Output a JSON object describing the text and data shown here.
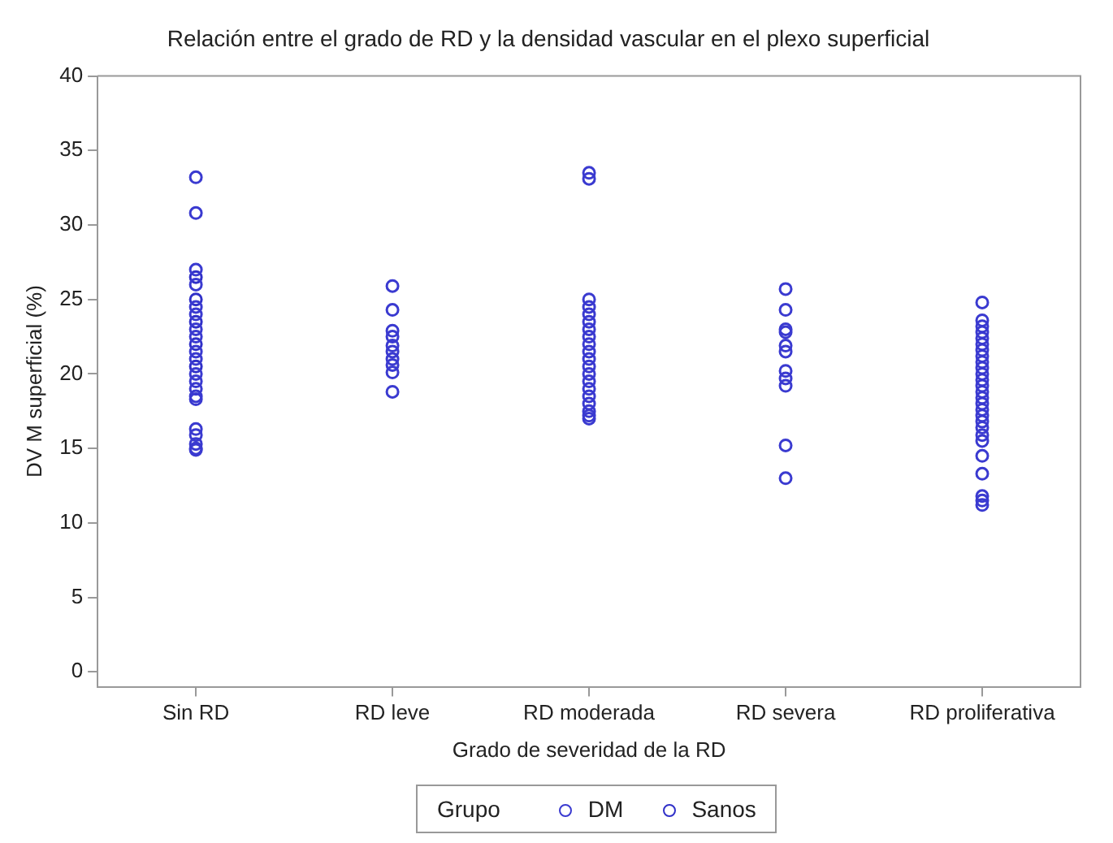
{
  "chart_data": {
    "type": "scatter",
    "title": "Relación entre el grado de RD y la densidad vascular en el plexo superficial",
    "xlabel": "Grado de severidad de la RD",
    "ylabel": "DV M superficial (%)",
    "legend_title": "Grupo",
    "legend": "bottom",
    "marker": "circle",
    "grid": false,
    "categories": [
      "Sin RD",
      "RD leve",
      "RD moderada",
      "RD severa",
      "RD proliferativa"
    ],
    "ylim": [
      -1,
      40
    ],
    "yticks": [
      0,
      5,
      10,
      15,
      20,
      25,
      30,
      35,
      40
    ],
    "series": [
      {
        "name": "DM",
        "color": "#3a3ad0",
        "x": [
          "Sin RD",
          "Sin RD",
          "Sin RD",
          "Sin RD",
          "Sin RD",
          "Sin RD",
          "Sin RD",
          "Sin RD",
          "Sin RD",
          "Sin RD",
          "Sin RD",
          "Sin RD",
          "Sin RD",
          "Sin RD",
          "Sin RD",
          "Sin RD",
          "Sin RD",
          "Sin RD",
          "Sin RD",
          "Sin RD",
          "RD leve",
          "RD leve",
          "RD leve",
          "RD leve",
          "RD leve",
          "RD leve",
          "RD leve",
          "RD leve",
          "RD leve",
          "RD leve",
          "RD moderada",
          "RD moderada",
          "RD moderada",
          "RD moderada",
          "RD moderada",
          "RD moderada",
          "RD moderada",
          "RD moderada",
          "RD moderada",
          "RD moderada",
          "RD moderada",
          "RD moderada",
          "RD moderada",
          "RD moderada",
          "RD moderada",
          "RD moderada",
          "RD moderada",
          "RD moderada",
          "RD moderada",
          "RD moderada",
          "RD severa",
          "RD severa",
          "RD severa",
          "RD severa",
          "RD severa",
          "RD severa",
          "RD severa",
          "RD severa",
          "RD severa",
          "RD severa",
          "RD severa",
          "RD proliferativa",
          "RD proliferativa",
          "RD proliferativa",
          "RD proliferativa",
          "RD proliferativa",
          "RD proliferativa",
          "RD proliferativa",
          "RD proliferativa",
          "RD proliferativa",
          "RD proliferativa",
          "RD proliferativa",
          "RD proliferativa",
          "RD proliferativa",
          "RD proliferativa",
          "RD proliferativa",
          "RD proliferativa",
          "RD proliferativa",
          "RD proliferativa",
          "RD proliferativa",
          "RD proliferativa",
          "RD proliferativa",
          "RD proliferativa",
          "RD proliferativa",
          "RD proliferativa",
          "RD proliferativa",
          "RD proliferativa",
          "RD proliferativa"
        ],
        "values": [
          33.2,
          30.8,
          27,
          26,
          24.5,
          24,
          23,
          22.5,
          21.5,
          21,
          20,
          19.5,
          19,
          18.5,
          18.3,
          16.3,
          15.9,
          15.3,
          15,
          14.9,
          25.9,
          24.3,
          22.9,
          22.5,
          21.9,
          21.5,
          21,
          20.6,
          20.1,
          18.8,
          33.5,
          33.1,
          25,
          24.5,
          24,
          23.5,
          23,
          22.5,
          22,
          21.5,
          21,
          20.5,
          20,
          19.5,
          19,
          18.5,
          18,
          17.5,
          17.2,
          17,
          25.7,
          24.3,
          23,
          22.8,
          21.9,
          21.5,
          20.2,
          19.7,
          19.2,
          15.2,
          13,
          24.8,
          23.6,
          23.2,
          22.8,
          22.4,
          22,
          21.6,
          21.2,
          20.8,
          20.4,
          20,
          19.6,
          19.2,
          18.8,
          18.4,
          18,
          17.6,
          17.2,
          16.8,
          16.4,
          15.9,
          15.5,
          14.5,
          13.3,
          11.8,
          11.5,
          11.2
        ]
      },
      {
        "name": "Sanos",
        "color": "#3030c8",
        "x": [
          "Sin RD",
          "Sin RD",
          "Sin RD",
          "Sin RD",
          "Sin RD"
        ],
        "values": [
          26.5,
          25,
          23.5,
          22,
          20.5
        ]
      }
    ]
  }
}
